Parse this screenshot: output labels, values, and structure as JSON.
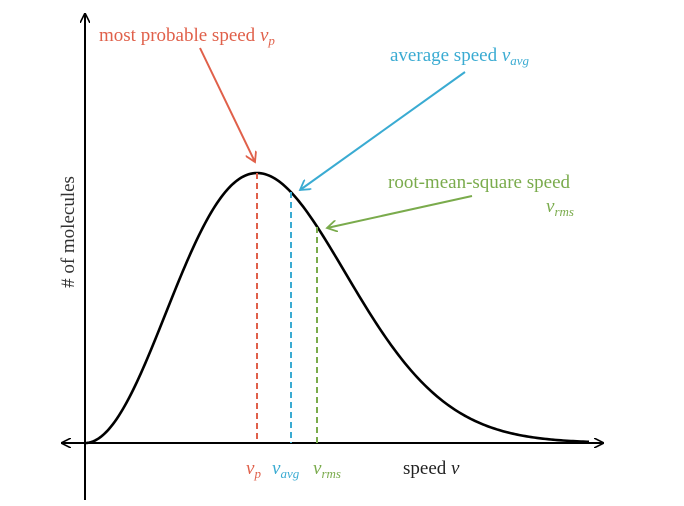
{
  "y_axis_label": "# of molecules",
  "x_axis_label": {
    "text": "speed",
    "symbol": "v"
  },
  "annotations": [
    {
      "text": "most probable speed",
      "symbol": "v",
      "subscript": "p"
    },
    {
      "text": "average speed",
      "symbol": "v",
      "subscript": "avg"
    },
    {
      "text": "root-mean-square speed",
      "symbol": "v",
      "subscript": "rms"
    }
  ],
  "axis_markers": [
    {
      "symbol": "v",
      "subscript": "p"
    },
    {
      "symbol": "v",
      "subscript": "avg"
    },
    {
      "symbol": "v",
      "subscript": "rms"
    }
  ]
}
